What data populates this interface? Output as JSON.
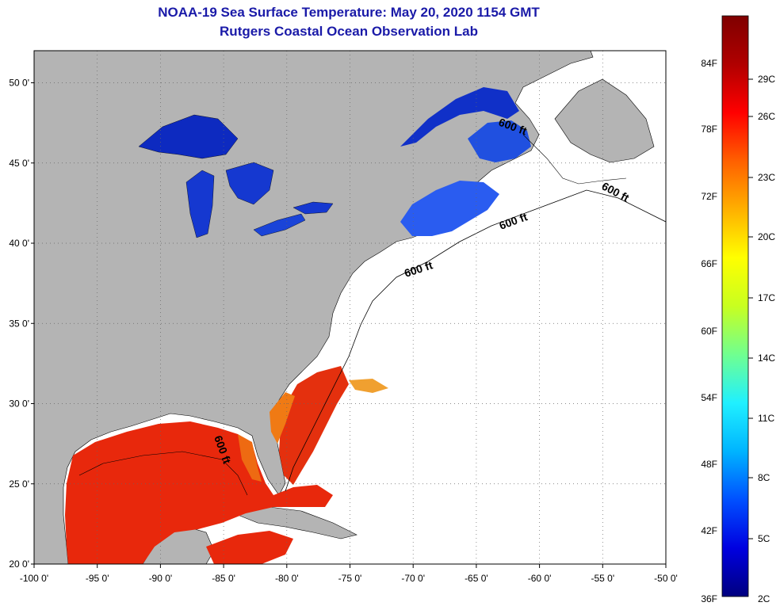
{
  "title": "NOAA-19 Sea Surface Temperature:  May 20, 2020 1154 GMT",
  "subtitle": "Rutgers Coastal Ocean Observation Lab",
  "map": {
    "lon_range": [
      -100,
      -50
    ],
    "lat_range": [
      20,
      52
    ],
    "x_ticks": [
      "-100 0'",
      "-95 0'",
      "-90 0'",
      "-85 0'",
      "-80 0'",
      "-75 0'",
      "-70 0'",
      "-65 0'",
      "-60 0'",
      "-55 0'",
      "-50 0'"
    ],
    "y_ticks": [
      "50 0'",
      "45 0'",
      "40 0'",
      "35 0'",
      "30 0'",
      "25 0'",
      "20 0'"
    ],
    "contour_labels": [
      "600 ft",
      "600 ft",
      "600 ft",
      "600 ft",
      "600 ft"
    ],
    "land_color": "#b4b4b4",
    "ocean_color": "#ffffff"
  },
  "colorbar": {
    "fahrenheit": [
      "84F",
      "78F",
      "72F",
      "66F",
      "60F",
      "54F",
      "48F",
      "42F",
      "36F"
    ],
    "celsius": [
      "29C",
      "26C",
      "23C",
      "20C",
      "17C",
      "14C",
      "11C",
      "8C",
      "5C",
      "2C"
    ],
    "colors": [
      "#00007f",
      "#0000e0",
      "#0050ff",
      "#00b4ff",
      "#20f0ff",
      "#70ff90",
      "#c8ff20",
      "#ffff00",
      "#ffb000",
      "#ff6000",
      "#ff0000",
      "#b00000",
      "#7f0000"
    ]
  }
}
